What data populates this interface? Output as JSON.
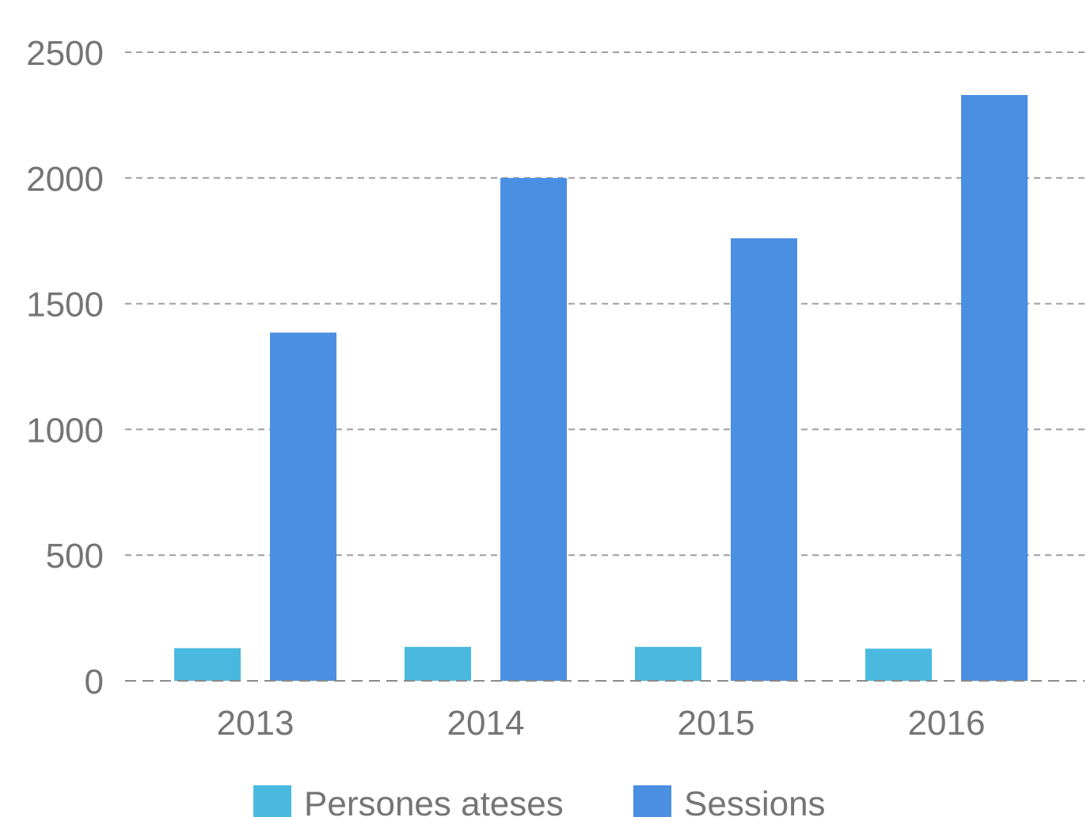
{
  "chart_data": {
    "type": "bar",
    "categories": [
      "2013",
      "2014",
      "2015",
      "2016"
    ],
    "series": [
      {
        "name": "Persones ateses",
        "values": [
          130,
          135,
          135,
          128
        ],
        "color": "#4ab9df"
      },
      {
        "name": "Sessions",
        "values": [
          1385,
          2000,
          1760,
          2330
        ],
        "color": "#4a8fe2"
      }
    ],
    "ylim": [
      0,
      2500
    ],
    "yticks": [
      0,
      500,
      1000,
      1500,
      2000,
      2500
    ],
    "ytick_labels": [
      "0",
      "500",
      "1000",
      "1500",
      "2000",
      "2500"
    ],
    "grid": true,
    "legend_position": "bottom",
    "title": "",
    "xlabel": "",
    "ylabel": ""
  }
}
